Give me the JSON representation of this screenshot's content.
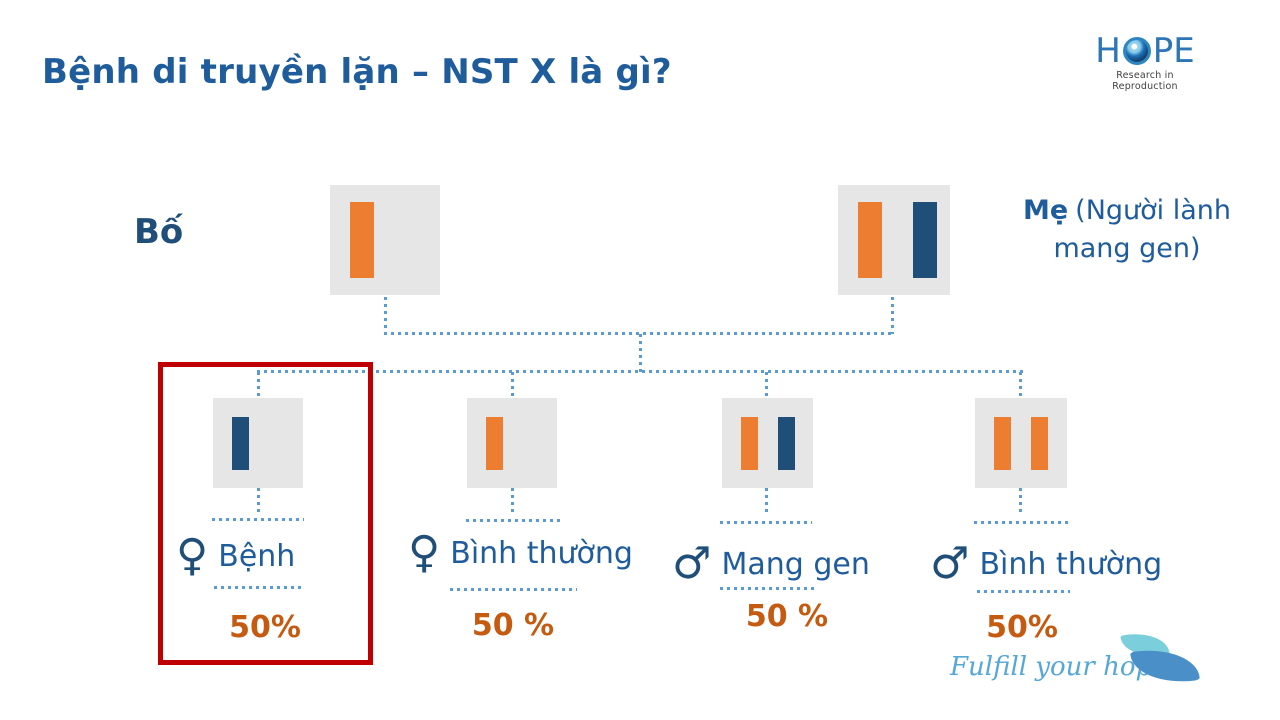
{
  "colors": {
    "title_blue": "#1F5C9B",
    "dark_blue": "#1F4E79",
    "orange": "#ED7D31",
    "bar_blue": "#1F4E79",
    "box_gray": "#E6E6E6",
    "dotted_blue": "#5B9BD5",
    "percent_orange": "#C55A11",
    "highlight_red": "#C00000",
    "logo_blue": "#2E75B6",
    "slogan_blue": "#55A7D6",
    "tagline_gray": "#404040",
    "leaf_light": "#7BCFDC",
    "leaf_dark": "#4A8FC7"
  },
  "title": "Bệnh di truyền lặn – NST X là gì?",
  "logo": {
    "h": "H",
    "pe": "PE",
    "tagline": "Research in Reproduction"
  },
  "father": {
    "label": "Bố",
    "chromosomes": [
      "orange"
    ]
  },
  "mother": {
    "label_bold": "Mẹ",
    "label_line1_rest": "(Người lành",
    "label_line2": "mang gen)",
    "chromosomes": [
      "orange",
      "blue"
    ]
  },
  "children": [
    {
      "symbol": "♀",
      "label": "Bệnh",
      "percent": "50%",
      "chromosomes": [
        "blue"
      ],
      "highlighted": true
    },
    {
      "symbol": "♀",
      "label": "Bình thường",
      "percent": "50 %",
      "chromosomes": [
        "orange"
      ],
      "highlighted": false
    },
    {
      "symbol": "♂",
      "label": "Mang gen",
      "percent": "50 %",
      "chromosomes": [
        "orange",
        "blue"
      ],
      "highlighted": false
    },
    {
      "symbol": "♂",
      "label": "Bình thường",
      "percent": "50%",
      "chromosomes": [
        "orange",
        "orange"
      ],
      "highlighted": false
    }
  ],
  "footer": {
    "slogan": "Fulfill your hope"
  }
}
